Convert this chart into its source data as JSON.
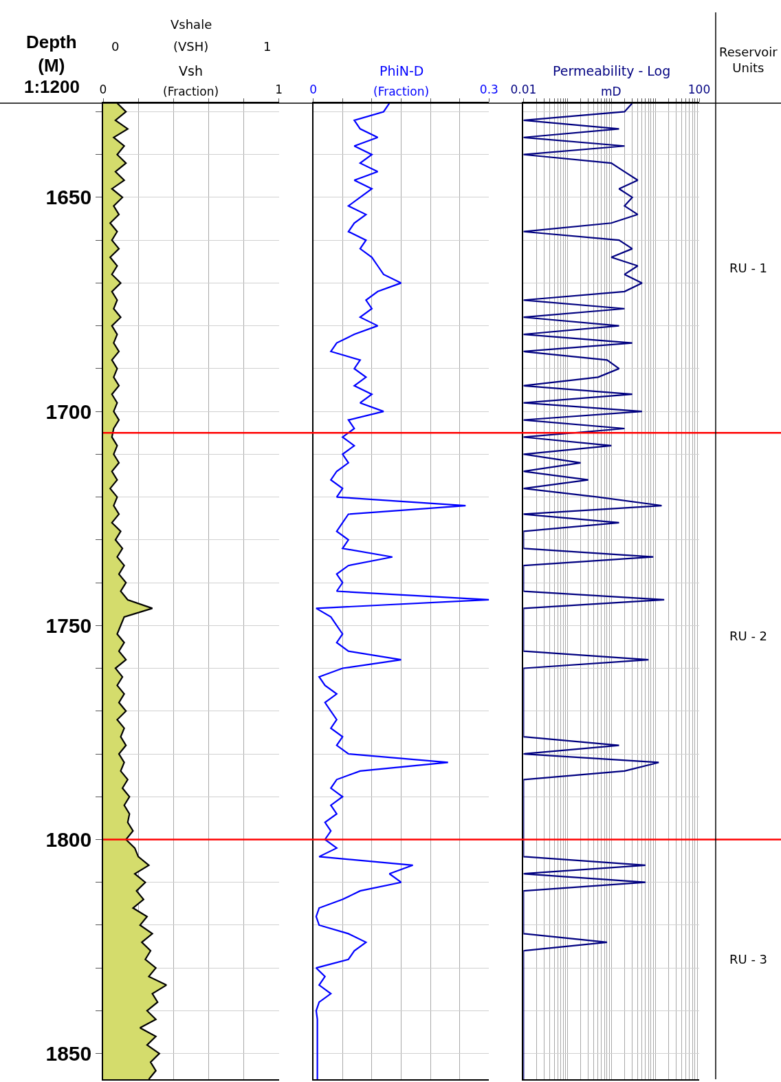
{
  "chart_data": [
    {
      "type": "area",
      "orientation": "horizontal",
      "title": "Vsh",
      "xlabel": "(Fraction)",
      "ylabel": "Depth\n(M)",
      "xlim": [
        0,
        1
      ],
      "xticks": [
        0,
        {
          "value": 0.2,
          "label": null
        },
        {
          "value": 0.4,
          "label": null
        },
        {
          "value": 0.6,
          "label": null
        },
        {
          "value": 0.8,
          "label": null
        },
        1
      ],
      "ylim": [
        1856,
        1628
      ],
      "yticks": [
        {
          "value": 1630,
          "label": null
        },
        {
          "value": 1640,
          "label": null
        },
        1650,
        {
          "value": 1660,
          "label": null
        },
        {
          "value": 1670,
          "label": null
        },
        {
          "value": 1680,
          "label": null
        },
        {
          "value": 1690,
          "label": null
        },
        1700,
        {
          "value": 1710,
          "label": null
        },
        {
          "value": 1720,
          "label": null
        },
        {
          "value": 1730,
          "label": null
        },
        {
          "value": 1740,
          "label": null
        },
        1750,
        {
          "value": 1760,
          "label": null
        },
        {
          "value": 1770,
          "label": null
        },
        {
          "value": 1780,
          "label": null
        },
        {
          "value": 1790,
          "label": null
        },
        1800,
        {
          "value": 1810,
          "label": null
        },
        {
          "value": 1820,
          "label": null
        },
        {
          "value": 1830,
          "label": null
        },
        {
          "value": 1840,
          "label": null
        },
        1850
      ],
      "grid": true,
      "ref_lines": [
        {
          "axis": "y",
          "value": 1705,
          "color": "#ff0000"
        },
        {
          "axis": "y",
          "value": 1800,
          "color": "#ff0000"
        }
      ],
      "annotations": [
        "1:1200",
        "Vshale",
        "(VSH)",
        "0",
        "1",
        "Reservoir\nUnits",
        "RU - 1",
        "RU - 2",
        "RU - 3"
      ],
      "x": [
        1628,
        1630,
        1632,
        1634,
        1636,
        1638,
        1640,
        1642,
        1644,
        1646,
        1648,
        1650,
        1652,
        1654,
        1656,
        1658,
        1660,
        1662,
        1664,
        1666,
        1668,
        1670,
        1672,
        1674,
        1676,
        1678,
        1680,
        1682,
        1684,
        1686,
        1688,
        1690,
        1692,
        1694,
        1696,
        1698,
        1700,
        1702,
        1704,
        1706,
        1708,
        1710,
        1712,
        1714,
        1716,
        1718,
        1720,
        1722,
        1724,
        1726,
        1728,
        1730,
        1732,
        1734,
        1736,
        1738,
        1740,
        1742,
        1744,
        1746,
        1748,
        1750,
        1752,
        1754,
        1756,
        1758,
        1760,
        1762,
        1764,
        1766,
        1768,
        1770,
        1772,
        1774,
        1776,
        1778,
        1780,
        1782,
        1784,
        1786,
        1788,
        1790,
        1792,
        1794,
        1796,
        1798,
        1800,
        1802,
        1804,
        1806,
        1808,
        1810,
        1812,
        1814,
        1816,
        1818,
        1820,
        1822,
        1824,
        1826,
        1828,
        1830,
        1832,
        1834,
        1836,
        1838,
        1840,
        1842,
        1844,
        1846,
        1848,
        1850,
        1852,
        1854,
        1856
      ],
      "series": [
        {
          "color": "#d4dc6c",
          "values": [
            0.08,
            0.13,
            0.07,
            0.14,
            0.06,
            0.12,
            0.08,
            0.13,
            0.07,
            0.12,
            0.05,
            0.11,
            0.06,
            0.09,
            0.04,
            0.08,
            0.05,
            0.09,
            0.04,
            0.08,
            0.05,
            0.1,
            0.05,
            0.08,
            0.06,
            0.1,
            0.05,
            0.08,
            0.06,
            0.09,
            0.05,
            0.08,
            0.06,
            0.09,
            0.05,
            0.08,
            0.06,
            0.09,
            0.06,
            0.05,
            0.08,
            0.06,
            0.09,
            0.05,
            0.08,
            0.04,
            0.08,
            0.06,
            0.09,
            0.05,
            0.1,
            0.07,
            0.11,
            0.08,
            0.12,
            0.09,
            0.13,
            0.1,
            0.14,
            0.28,
            0.12,
            0.1,
            0.08,
            0.12,
            0.09,
            0.13,
            0.07,
            0.11,
            0.08,
            0.12,
            0.09,
            0.13,
            0.08,
            0.12,
            0.1,
            0.13,
            0.09,
            0.12,
            0.1,
            0.14,
            0.11,
            0.15,
            0.12,
            0.15,
            0.14,
            0.17,
            0.13,
            0.18,
            0.2,
            0.26,
            0.18,
            0.24,
            0.19,
            0.23,
            0.17,
            0.25,
            0.21,
            0.28,
            0.22,
            0.27,
            0.24,
            0.3,
            0.26,
            0.36,
            0.28,
            0.31,
            0.25,
            0.3,
            0.21,
            0.3,
            0.25,
            0.32,
            0.27,
            0.3,
            0.26
          ]
        }
      ]
    },
    {
      "type": "line",
      "orientation": "horizontal",
      "title": "PhiN-D",
      "xlabel": "(Fraction)",
      "xlim": [
        0,
        0.3
      ],
      "xticks": [
        0,
        {
          "value": 0.05,
          "label": null
        },
        {
          "value": 0.1,
          "label": null
        },
        {
          "value": 0.15,
          "label": null
        },
        {
          "value": 0.2,
          "label": null
        },
        {
          "value": 0.25,
          "label": null
        },
        0.3
      ],
      "ylim": [
        1856,
        1628
      ],
      "yticks": [
        {
          "value": 1630,
          "label": null
        },
        {
          "value": 1640,
          "label": null
        },
        {
          "value": 1650,
          "label": null
        },
        {
          "value": 1660,
          "label": null
        },
        {
          "value": 1670,
          "label": null
        },
        {
          "value": 1680,
          "label": null
        },
        {
          "value": 1690,
          "label": null
        },
        {
          "value": 1700,
          "label": null
        },
        {
          "value": 1710,
          "label": null
        },
        {
          "value": 1720,
          "label": null
        },
        {
          "value": 1730,
          "label": null
        },
        {
          "value": 1740,
          "label": null
        },
        {
          "value": 1750,
          "label": null
        },
        {
          "value": 1760,
          "label": null
        },
        {
          "value": 1770,
          "label": null
        },
        {
          "value": 1780,
          "label": null
        },
        {
          "value": 1790,
          "label": null
        },
        {
          "value": 1800,
          "label": null
        },
        {
          "value": 1810,
          "label": null
        },
        {
          "value": 1820,
          "label": null
        },
        {
          "value": 1830,
          "label": null
        },
        {
          "value": 1840,
          "label": null
        },
        {
          "value": 1850,
          "label": null
        }
      ],
      "grid": true,
      "tick_labels": "x",
      "x": [
        1628,
        1630,
        1632,
        1634,
        1636,
        1638,
        1640,
        1642,
        1644,
        1646,
        1648,
        1650,
        1652,
        1654,
        1656,
        1658,
        1660,
        1662,
        1664,
        1666,
        1668,
        1670,
        1672,
        1674,
        1676,
        1678,
        1680,
        1682,
        1684,
        1686,
        1688,
        1690,
        1692,
        1694,
        1696,
        1698,
        1700,
        1702,
        1704,
        1706,
        1708,
        1710,
        1712,
        1714,
        1716,
        1718,
        1720,
        1722,
        1724,
        1726,
        1728,
        1730,
        1732,
        1734,
        1736,
        1738,
        1740,
        1742,
        1744,
        1746,
        1748,
        1750,
        1752,
        1754,
        1756,
        1758,
        1760,
        1762,
        1764,
        1766,
        1768,
        1770,
        1772,
        1774,
        1776,
        1778,
        1780,
        1782,
        1784,
        1786,
        1788,
        1790,
        1792,
        1794,
        1796,
        1798,
        1800,
        1802,
        1804,
        1806,
        1808,
        1810,
        1812,
        1814,
        1816,
        1818,
        1820,
        1822,
        1824,
        1826,
        1828,
        1830,
        1832,
        1834,
        1836,
        1838,
        1840,
        1842,
        1844,
        1846,
        1848,
        1850,
        1852,
        1854,
        1856
      ],
      "series": [
        {
          "color": "#0000ff",
          "values": [
            0.13,
            0.12,
            0.07,
            0.08,
            0.11,
            0.07,
            0.1,
            0.08,
            0.11,
            0.07,
            0.1,
            0.08,
            0.06,
            0.09,
            0.07,
            0.06,
            0.09,
            0.08,
            0.1,
            0.11,
            0.12,
            0.15,
            0.11,
            0.09,
            0.1,
            0.08,
            0.11,
            0.07,
            0.04,
            0.03,
            0.08,
            0.07,
            0.09,
            0.07,
            0.1,
            0.08,
            0.12,
            0.06,
            0.07,
            0.05,
            0.07,
            0.05,
            0.06,
            0.04,
            0.03,
            0.05,
            0.04,
            0.26,
            0.06,
            0.05,
            0.04,
            0.06,
            0.05,
            0.135,
            0.06,
            0.04,
            0.05,
            0.04,
            0.3,
            0.005,
            0.03,
            0.04,
            0.05,
            0.04,
            0.06,
            0.15,
            0.05,
            0.01,
            0.02,
            0.04,
            0.02,
            0.03,
            0.04,
            0.03,
            0.05,
            0.04,
            0.06,
            0.23,
            0.08,
            0.04,
            0.03,
            0.05,
            0.03,
            0.04,
            0.02,
            0.03,
            0.02,
            0.04,
            0.01,
            0.17,
            0.13,
            0.15,
            0.08,
            0.05,
            0.01,
            0.005,
            0.01,
            0.06,
            0.09,
            0.07,
            0.06,
            0.005,
            0.02,
            0.01,
            0.03,
            0.01,
            0.005,
            0.007,
            0.007,
            0.007,
            0.007,
            0.007,
            0.007,
            0.007,
            0.007
          ]
        }
      ]
    },
    {
      "type": "line",
      "orientation": "horizontal",
      "title": "Permeability - Log",
      "xlabel": "mD",
      "log": "x",
      "xlim": [
        0.01,
        100
      ],
      "xticks": [
        0.01,
        {
          "value": 0.02,
          "label": null
        },
        {
          "value": 0.03,
          "label": null
        },
        {
          "value": 0.04,
          "label": null
        },
        {
          "value": 0.05,
          "label": null
        },
        {
          "value": 0.06,
          "label": null
        },
        {
          "value": 0.07,
          "label": null
        },
        {
          "value": 0.08,
          "label": null
        },
        {
          "value": 0.09,
          "label": null
        },
        {
          "value": 0.1,
          "label": null
        },
        {
          "value": 0.2,
          "label": null
        },
        {
          "value": 0.3,
          "label": null
        },
        {
          "value": 0.4,
          "label": null
        },
        {
          "value": 0.5,
          "label": null
        },
        {
          "value": 0.6,
          "label": null
        },
        {
          "value": 0.7,
          "label": null
        },
        {
          "value": 0.8,
          "label": null
        },
        {
          "value": 0.9,
          "label": null
        },
        {
          "value": 1,
          "label": null
        },
        {
          "value": 2,
          "label": null
        },
        {
          "value": 3,
          "label": null
        },
        {
          "value": 4,
          "label": null
        },
        {
          "value": 5,
          "label": null
        },
        {
          "value": 6,
          "label": null
        },
        {
          "value": 7,
          "label": null
        },
        {
          "value": 8,
          "label": null
        },
        {
          "value": 9,
          "label": null
        },
        {
          "value": 10,
          "label": null
        },
        {
          "value": 20,
          "label": null
        },
        {
          "value": 30,
          "label": null
        },
        {
          "value": 40,
          "label": null
        },
        {
          "value": 50,
          "label": null
        },
        {
          "value": 60,
          "label": null
        },
        {
          "value": 70,
          "label": null
        },
        {
          "value": 80,
          "label": null
        },
        {
          "value": 90,
          "label": null
        },
        100
      ],
      "ylim": [
        1856,
        1628
      ],
      "yticks": [
        {
          "value": 1630,
          "label": null
        },
        {
          "value": 1640,
          "label": null
        },
        {
          "value": 1650,
          "label": null
        },
        {
          "value": 1660,
          "label": null
        },
        {
          "value": 1670,
          "label": null
        },
        {
          "value": 1680,
          "label": null
        },
        {
          "value": 1690,
          "label": null
        },
        {
          "value": 1700,
          "label": null
        },
        {
          "value": 1710,
          "label": null
        },
        {
          "value": 1720,
          "label": null
        },
        {
          "value": 1730,
          "label": null
        },
        {
          "value": 1740,
          "label": null
        },
        {
          "value": 1750,
          "label": null
        },
        {
          "value": 1760,
          "label": null
        },
        {
          "value": 1770,
          "label": null
        },
        {
          "value": 1780,
          "label": null
        },
        {
          "value": 1790,
          "label": null
        },
        {
          "value": 1800,
          "label": null
        },
        {
          "value": 1810,
          "label": null
        },
        {
          "value": 1820,
          "label": null
        },
        {
          "value": 1830,
          "label": null
        },
        {
          "value": 1840,
          "label": null
        },
        {
          "value": 1850,
          "label": null
        }
      ],
      "grid": true,
      "tick_labels": "x",
      "x": [
        1628,
        1630,
        1632,
        1634,
        1636,
        1638,
        1640,
        1642,
        1644,
        1646,
        1648,
        1650,
        1652,
        1654,
        1656,
        1658,
        1660,
        1662,
        1664,
        1666,
        1668,
        1670,
        1672,
        1674,
        1676,
        1678,
        1680,
        1682,
        1684,
        1686,
        1688,
        1690,
        1692,
        1694,
        1696,
        1698,
        1700,
        1702,
        1704,
        1706,
        1708,
        1710,
        1712,
        1714,
        1716,
        1718,
        1720,
        1722,
        1724,
        1726,
        1728,
        1730,
        1732,
        1734,
        1736,
        1738,
        1740,
        1742,
        1744,
        1746,
        1748,
        1750,
        1752,
        1754,
        1756,
        1758,
        1760,
        1762,
        1764,
        1766,
        1768,
        1770,
        1772,
        1774,
        1776,
        1778,
        1780,
        1782,
        1784,
        1786,
        1788,
        1790,
        1792,
        1794,
        1796,
        1798,
        1800,
        1802,
        1804,
        1806,
        1808,
        1810,
        1812,
        1814,
        1816,
        1818,
        1820,
        1822,
        1824,
        1826,
        1828,
        1830,
        1832,
        1834,
        1836,
        1838,
        1840,
        1842,
        1844,
        1846,
        1848,
        1850,
        1852,
        1854,
        1856
      ],
      "series": [
        {
          "color": "#000080",
          "values": [
            3,
            2,
            0.01,
            1.5,
            0.01,
            2,
            0.01,
            1,
            2,
            4,
            1.5,
            3,
            2,
            4,
            1,
            0.01,
            1.5,
            3,
            1,
            4,
            2,
            5,
            2,
            0.01,
            2,
            0.01,
            1.5,
            0.01,
            3,
            0.01,
            0.8,
            1.5,
            0.5,
            0.01,
            3,
            0.01,
            5,
            0.01,
            2,
            0.01,
            1,
            0.01,
            0.2,
            0.01,
            0.3,
            0.01,
            0.5,
            14,
            0.01,
            1.5,
            0.01,
            0.01,
            0.01,
            9,
            0.01,
            0.01,
            0.01,
            0.01,
            16,
            0.01,
            0.01,
            0.01,
            0.01,
            0.01,
            0.01,
            7,
            0.01,
            0.01,
            0.01,
            0.01,
            0.01,
            0.01,
            0.01,
            0.01,
            0.01,
            1.5,
            0.01,
            12,
            2,
            0.01,
            0.01,
            0.01,
            0.01,
            0.01,
            0.01,
            0.01,
            0.01,
            0.01,
            0.01,
            6,
            0.01,
            6,
            0.01,
            0.01,
            0.01,
            0.01,
            0.01,
            0.01,
            0.8,
            0.01,
            0.01,
            0.01,
            0.01,
            0.01,
            0.01,
            0.01,
            0.01,
            0.01,
            0.01,
            0.01,
            0.01,
            0.01,
            0.01,
            0.01,
            0.01
          ]
        }
      ]
    }
  ]
}
